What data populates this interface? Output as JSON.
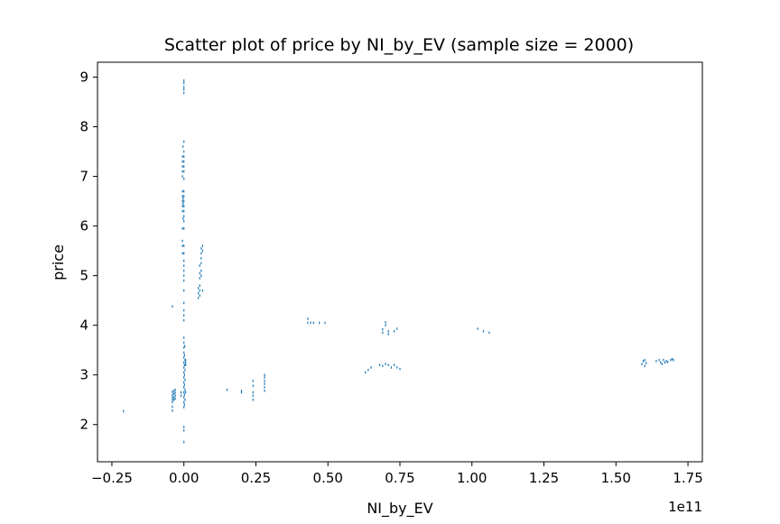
{
  "chart_data": {
    "type": "scatter",
    "title": "Scatter plot of price by NI_by_EV (sample size = 2000)",
    "xlabel": "NI_by_EV",
    "ylabel": "price",
    "x_offset_label": "1e11",
    "xlim": [
      -0.3,
      1.8
    ],
    "ylim": [
      1.25,
      9.3
    ],
    "x_ticks": [
      -0.25,
      0.0,
      0.25,
      0.5,
      0.75,
      1.0,
      1.25,
      1.5,
      1.75
    ],
    "x_tick_labels": [
      "−0.25",
      "0.00",
      "0.25",
      "0.50",
      "0.75",
      "1.00",
      "1.25",
      "1.50",
      "1.75"
    ],
    "y_ticks": [
      2,
      3,
      4,
      5,
      6,
      7,
      8,
      9
    ],
    "y_tick_labels": [
      "2",
      "3",
      "4",
      "5",
      "6",
      "7",
      "8",
      "9"
    ],
    "grid": false,
    "marker_color": "#1f77b4",
    "series": [
      {
        "points": [
          [
            -0.21,
            2.27
          ],
          [
            -0.04,
            4.38
          ],
          [
            -0.04,
            2.28
          ],
          [
            -0.04,
            2.36
          ],
          [
            -0.04,
            2.45
          ],
          [
            -0.04,
            2.5
          ],
          [
            -0.04,
            2.55
          ],
          [
            -0.04,
            2.6
          ],
          [
            -0.04,
            2.66
          ],
          [
            -0.035,
            2.5
          ],
          [
            -0.035,
            2.55
          ],
          [
            -0.035,
            2.62
          ],
          [
            -0.035,
            2.68
          ],
          [
            -0.03,
            2.52
          ],
          [
            -0.03,
            2.58
          ],
          [
            -0.03,
            2.64
          ],
          [
            -0.03,
            2.7
          ],
          [
            -0.01,
            2.58
          ],
          [
            -0.01,
            2.65
          ],
          [
            0.0,
            1.65
          ],
          [
            0.0,
            1.88
          ],
          [
            0.0,
            1.95
          ],
          [
            0.0,
            2.35
          ],
          [
            0.0,
            2.45
          ],
          [
            0.0,
            2.55
          ],
          [
            0.0,
            2.65
          ],
          [
            0.0,
            2.75
          ],
          [
            0.0,
            2.85
          ],
          [
            0.0,
            2.95
          ],
          [
            0.0,
            3.05
          ],
          [
            0.0,
            3.15
          ],
          [
            0.0,
            3.25
          ],
          [
            0.0,
            3.35
          ],
          [
            0.0,
            3.45
          ],
          [
            0.002,
            2.4
          ],
          [
            0.002,
            2.6
          ],
          [
            0.002,
            2.8
          ],
          [
            0.002,
            3.0
          ],
          [
            0.002,
            3.2
          ],
          [
            0.002,
            3.4
          ],
          [
            0.004,
            2.5
          ],
          [
            0.004,
            2.7
          ],
          [
            0.004,
            2.9
          ],
          [
            0.004,
            3.1
          ],
          [
            0.004,
            3.3
          ],
          [
            0.006,
            3.2
          ],
          [
            0.006,
            3.25
          ],
          [
            0.006,
            3.3
          ],
          [
            0.006,
            2.65
          ],
          [
            0.0,
            3.55
          ],
          [
            0.0,
            3.65
          ],
          [
            0.0,
            3.75
          ],
          [
            0.003,
            3.58
          ],
          [
            0.0,
            4.1
          ],
          [
            0.0,
            4.2
          ],
          [
            0.0,
            4.3
          ],
          [
            0.0,
            4.45
          ],
          [
            0.0,
            4.7
          ],
          [
            0.0,
            4.9
          ],
          [
            0.0,
            5.0
          ],
          [
            0.0,
            5.1
          ],
          [
            0.0,
            5.2
          ],
          [
            0.0,
            5.3
          ],
          [
            0.0,
            5.45
          ],
          [
            0.0,
            5.6
          ],
          [
            -0.005,
            5.7
          ],
          [
            -0.005,
            5.6
          ],
          [
            -0.005,
            5.45
          ],
          [
            -0.005,
            5.95
          ],
          [
            0.0,
            5.95
          ],
          [
            0.0,
            6.1
          ],
          [
            0.0,
            6.2
          ],
          [
            0.0,
            6.3
          ],
          [
            0.0,
            6.4
          ],
          [
            0.0,
            6.5
          ],
          [
            0.0,
            6.6
          ],
          [
            0.0,
            6.7
          ],
          [
            -0.005,
            6.3
          ],
          [
            -0.005,
            6.4
          ],
          [
            -0.005,
            6.5
          ],
          [
            -0.005,
            6.6
          ],
          [
            -0.005,
            6.7
          ],
          [
            -0.003,
            6.15
          ],
          [
            -0.003,
            6.45
          ],
          [
            -0.003,
            6.55
          ],
          [
            0.0,
            6.95
          ],
          [
            0.0,
            7.1
          ],
          [
            0.0,
            7.2
          ],
          [
            0.0,
            7.3
          ],
          [
            0.0,
            7.4
          ],
          [
            -0.005,
            7.0
          ],
          [
            -0.005,
            7.1
          ],
          [
            -0.005,
            7.2
          ],
          [
            -0.005,
            7.3
          ],
          [
            -0.005,
            7.4
          ],
          [
            -0.003,
            7.6
          ],
          [
            0.0,
            7.7
          ],
          [
            0.0,
            7.5
          ],
          [
            0.0,
            8.68
          ],
          [
            0.0,
            8.75
          ],
          [
            0.0,
            8.8
          ],
          [
            0.0,
            8.88
          ],
          [
            0.0,
            8.93
          ],
          [
            0.05,
            4.55
          ],
          [
            0.05,
            4.65
          ],
          [
            0.05,
            4.75
          ],
          [
            0.055,
            4.6
          ],
          [
            0.055,
            4.7
          ],
          [
            0.055,
            4.8
          ],
          [
            0.055,
            4.95
          ],
          [
            0.055,
            5.05
          ],
          [
            0.055,
            5.2
          ],
          [
            0.06,
            5.0
          ],
          [
            0.06,
            5.1
          ],
          [
            0.06,
            5.25
          ],
          [
            0.06,
            5.35
          ],
          [
            0.06,
            5.45
          ],
          [
            0.06,
            5.55
          ],
          [
            0.065,
            4.7
          ],
          [
            0.065,
            5.5
          ],
          [
            0.065,
            5.6
          ],
          [
            0.15,
            2.7
          ],
          [
            0.2,
            2.65
          ],
          [
            0.2,
            2.68
          ],
          [
            0.24,
            2.5
          ],
          [
            0.24,
            2.58
          ],
          [
            0.24,
            2.65
          ],
          [
            0.24,
            2.78
          ],
          [
            0.24,
            2.88
          ],
          [
            0.28,
            2.68
          ],
          [
            0.28,
            2.75
          ],
          [
            0.28,
            2.82
          ],
          [
            0.28,
            2.88
          ],
          [
            0.28,
            2.95
          ],
          [
            0.28,
            3.0
          ],
          [
            0.43,
            4.05
          ],
          [
            0.43,
            4.13
          ],
          [
            0.44,
            4.05
          ],
          [
            0.45,
            4.05
          ],
          [
            0.47,
            4.05
          ],
          [
            0.49,
            4.05
          ],
          [
            0.63,
            3.05
          ],
          [
            0.64,
            3.1
          ],
          [
            0.65,
            3.15
          ],
          [
            0.68,
            3.2
          ],
          [
            0.69,
            3.18
          ],
          [
            0.7,
            3.22
          ],
          [
            0.71,
            3.2
          ],
          [
            0.72,
            3.15
          ],
          [
            0.73,
            3.2
          ],
          [
            0.74,
            3.15
          ],
          [
            0.75,
            3.12
          ],
          [
            0.69,
            3.85
          ],
          [
            0.69,
            3.92
          ],
          [
            0.7,
            4.0
          ],
          [
            0.7,
            4.06
          ],
          [
            0.71,
            3.82
          ],
          [
            0.71,
            3.88
          ],
          [
            0.73,
            3.88
          ],
          [
            0.74,
            3.93
          ],
          [
            1.02,
            3.93
          ],
          [
            1.04,
            3.88
          ],
          [
            1.06,
            3.85
          ],
          [
            1.59,
            3.22
          ],
          [
            1.595,
            3.28
          ],
          [
            1.6,
            3.3
          ],
          [
            1.6,
            3.18
          ],
          [
            1.605,
            3.24
          ],
          [
            1.64,
            3.28
          ],
          [
            1.65,
            3.3
          ],
          [
            1.655,
            3.25
          ],
          [
            1.66,
            3.22
          ],
          [
            1.665,
            3.3
          ],
          [
            1.67,
            3.25
          ],
          [
            1.675,
            3.28
          ],
          [
            1.68,
            3.26
          ],
          [
            1.69,
            3.3
          ],
          [
            1.695,
            3.32
          ],
          [
            1.7,
            3.3
          ]
        ]
      }
    ]
  }
}
